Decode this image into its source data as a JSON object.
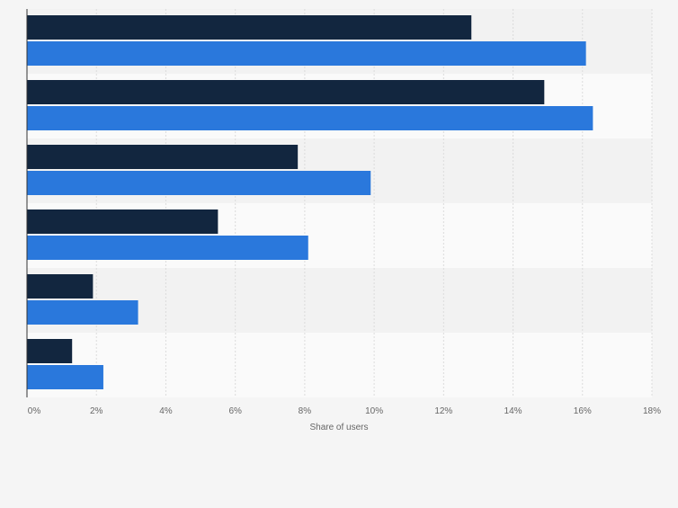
{
  "chart_data": {
    "type": "bar",
    "orientation": "horizontal",
    "categories": [
      "",
      "",
      "",
      "",
      "",
      ""
    ],
    "series": [
      {
        "values": [
          12.8,
          14.9,
          7.8,
          5.5,
          1.9,
          1.3
        ]
      },
      {
        "values": [
          16.1,
          16.3,
          9.9,
          8.1,
          3.2,
          2.2
        ]
      }
    ],
    "colors": [
      "#12263f",
      "#2a78dc"
    ],
    "x_ticks": [
      "0%",
      "2%",
      "4%",
      "6%",
      "8%",
      "10%",
      "12%",
      "14%",
      "16%",
      "18%"
    ],
    "xlim": [
      0,
      18
    ],
    "xlabel": "Share of users",
    "grid": true,
    "band_colors": [
      "#f2f2f2",
      "#fafafa"
    ]
  }
}
